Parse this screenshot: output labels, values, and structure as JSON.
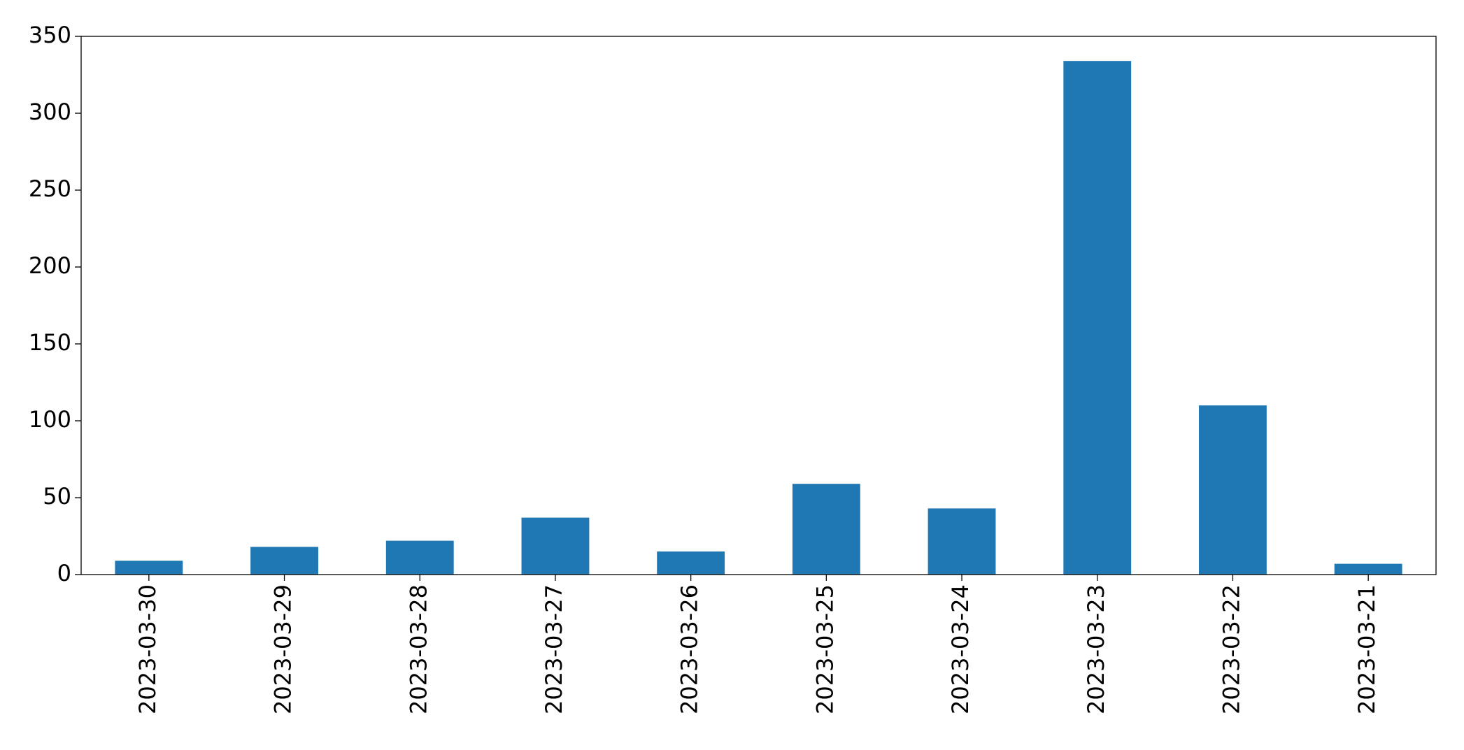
{
  "chart_data": {
    "type": "bar",
    "categories": [
      "2023-03-30",
      "2023-03-29",
      "2023-03-28",
      "2023-03-27",
      "2023-03-26",
      "2023-03-25",
      "2023-03-24",
      "2023-03-23",
      "2023-03-22",
      "2023-03-21"
    ],
    "values": [
      9,
      18,
      22,
      37,
      15,
      59,
      43,
      334,
      110,
      7
    ],
    "color": "#1f77b4",
    "ylim": [
      0,
      350
    ],
    "yticks": [
      0,
      50,
      100,
      150,
      200,
      250,
      300,
      350
    ],
    "grid": false
  }
}
